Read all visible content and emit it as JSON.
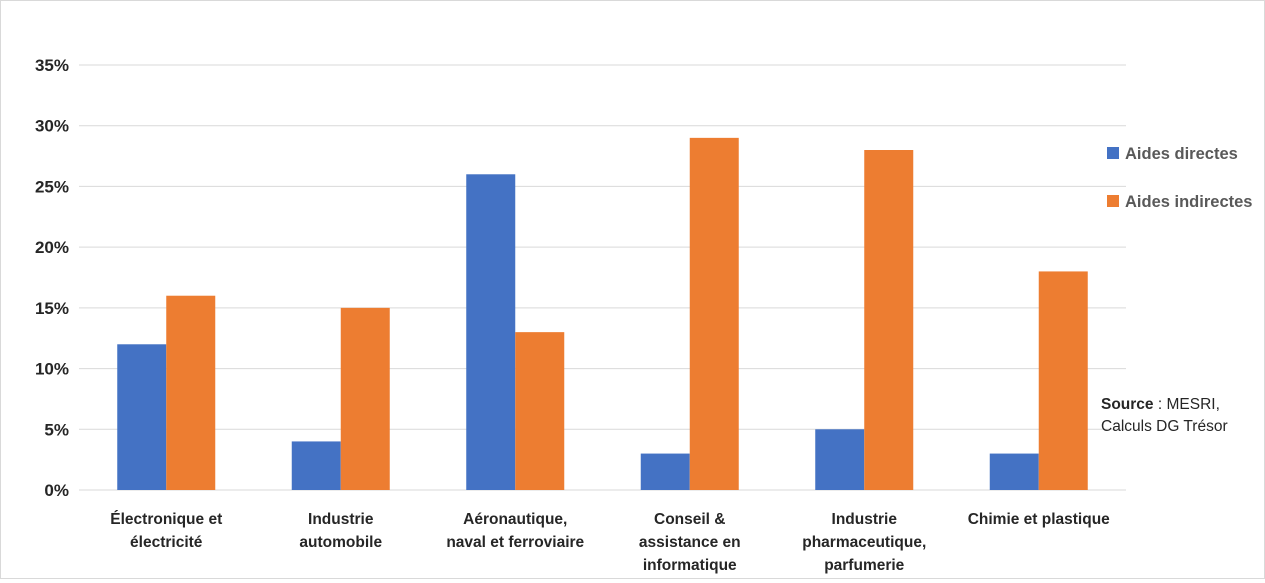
{
  "chart_data": {
    "type": "bar",
    "categories": [
      [
        "Électronique et",
        "électricité"
      ],
      [
        "Industrie",
        "automobile"
      ],
      [
        "Aéronautique,",
        "naval et ferroviaire"
      ],
      [
        "Conseil &",
        "assistance en",
        "informatique"
      ],
      [
        "Industrie",
        "pharmaceutique,",
        "parfumerie"
      ],
      [
        "Chimie et plastique"
      ]
    ],
    "series": [
      {
        "name": "Aides directes",
        "color": "#4472C4",
        "values": [
          12,
          4,
          26,
          3,
          5,
          3
        ]
      },
      {
        "name": "Aides indirectes",
        "color": "#ED7D31",
        "values": [
          16,
          15,
          13,
          29,
          28,
          18
        ]
      }
    ],
    "ylim": [
      0,
      35
    ],
    "yticks": [
      0,
      5,
      10,
      15,
      20,
      25,
      30,
      35
    ],
    "ytick_labels": [
      "0%",
      "5%",
      "10%",
      "15%",
      "20%",
      "25%",
      "30%",
      "35%"
    ],
    "title": "",
    "xlabel": "",
    "ylabel": "",
    "grid": true,
    "legend_position": "right"
  },
  "source": {
    "label": "Source",
    "separator": " : MESRI,",
    "line2": "Calculs DG Trésor"
  }
}
